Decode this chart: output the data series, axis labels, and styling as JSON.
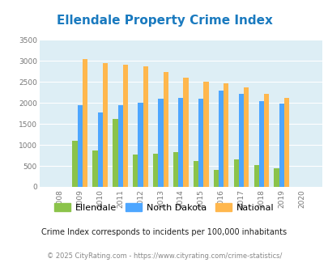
{
  "title": "Ellendale Property Crime Index",
  "years": [
    2008,
    2009,
    2010,
    2011,
    2012,
    2013,
    2014,
    2015,
    2016,
    2017,
    2018,
    2019,
    2020
  ],
  "ellendale": [
    0,
    1100,
    860,
    1620,
    780,
    800,
    830,
    620,
    400,
    650,
    530,
    440,
    0
  ],
  "north_dakota": [
    0,
    1940,
    1780,
    1940,
    2010,
    2100,
    2120,
    2110,
    2300,
    2210,
    2050,
    1980,
    0
  ],
  "national": [
    0,
    3040,
    2950,
    2920,
    2870,
    2730,
    2600,
    2500,
    2470,
    2380,
    2210,
    2120,
    0
  ],
  "ellendale_color": "#8bc34a",
  "north_dakota_color": "#4da6ff",
  "national_color": "#ffb74d",
  "bg_color": "#ddeef5",
  "ylim": [
    0,
    3500
  ],
  "yticks": [
    0,
    500,
    1000,
    1500,
    2000,
    2500,
    3000,
    3500
  ],
  "legend_labels": [
    "Ellendale",
    "North Dakota",
    "National"
  ],
  "bar_width": 0.25,
  "title_color": "#1a7abf",
  "subtitle": "Crime Index corresponds to incidents per 100,000 inhabitants",
  "footer": "© 2025 CityRating.com - https://www.cityrating.com/crime-statistics/",
  "subtitle_color": "#222222",
  "footer_color": "#888888"
}
